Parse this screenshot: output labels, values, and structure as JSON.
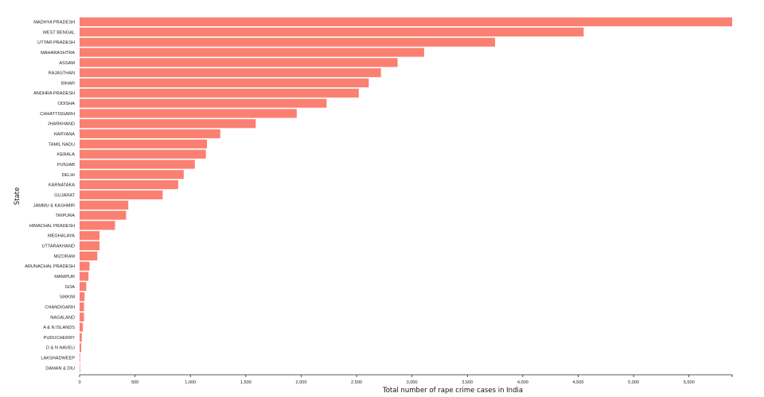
{
  "chart_data": {
    "type": "bar",
    "orientation": "horizontal",
    "xlabel": "Total number of rape crime cases in India",
    "ylabel": "State",
    "xlim": [
      0,
      5890
    ],
    "x_ticks": [
      0,
      500,
      1000,
      1500,
      2000,
      2500,
      3000,
      3500,
      4000,
      4500,
      5000,
      5500
    ],
    "x_tick_labels": [
      "0",
      "500",
      "1,000",
      "1,500",
      "2,000",
      "2,500",
      "3,000",
      "3,500",
      "4,000",
      "4,500",
      "5,000",
      "5,500"
    ],
    "bar_color": "#fa8072",
    "categories": [
      "MADHYA PRADESH",
      "WEST BENGAL",
      "UTTAR PRADESH",
      "MAHARASHTRA",
      "ASSAM",
      "RAJASTHAN",
      "BIHAR",
      "ANDHRA PRADESH",
      "ODISHA",
      "CHHATTISGARH",
      "JHARKHAND",
      "HARYANA",
      "TAMIL NADU",
      "KERALA",
      "PUNJAB",
      "DELHI",
      "KARNATAKA",
      "GUJARAT",
      "JAMMU & KASHMIR",
      "TRIPURA",
      "HIMACHAL PRADESH",
      "MEGHALAYA",
      "UTTARAKHAND",
      "MIZORAM",
      "ARUNACHAL PRADESH",
      "MANIPUR",
      "GOA",
      "SIKKIM",
      "CHANDIGARH",
      "NAGALAND",
      "A & N ISLANDS",
      "PUDUCHERRY",
      "D & N HAVELI",
      "LAKSHADWEEP",
      "DAMAN & DIU"
    ],
    "values": [
      5890,
      4550,
      3750,
      3110,
      2870,
      2720,
      2610,
      2520,
      2230,
      1960,
      1590,
      1270,
      1150,
      1140,
      1040,
      940,
      890,
      750,
      440,
      420,
      320,
      180,
      180,
      160,
      90,
      80,
      60,
      45,
      40,
      40,
      30,
      20,
      15,
      5,
      2
    ]
  }
}
